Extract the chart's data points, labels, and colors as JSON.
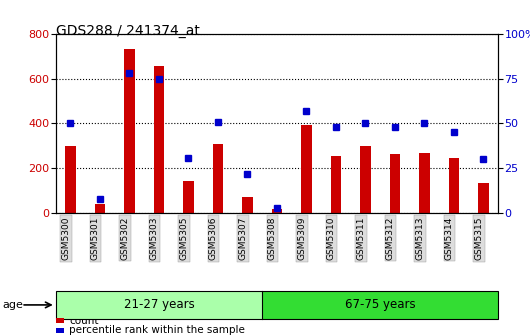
{
  "title": "GDS288 / 241374_at",
  "samples": [
    "GSM5300",
    "GSM5301",
    "GSM5302",
    "GSM5303",
    "GSM5305",
    "GSM5306",
    "GSM5307",
    "GSM5308",
    "GSM5309",
    "GSM5310",
    "GSM5311",
    "GSM5312",
    "GSM5313",
    "GSM5314",
    "GSM5315"
  ],
  "counts": [
    300,
    40,
    730,
    655,
    145,
    310,
    75,
    20,
    395,
    255,
    300,
    265,
    270,
    245,
    135
  ],
  "percentiles": [
    50,
    8,
    78,
    75,
    31,
    51,
    22,
    3,
    57,
    48,
    50,
    48,
    50,
    45,
    30
  ],
  "group1_label": "21-27 years",
  "group2_label": "67-75 years",
  "group1_count": 7,
  "group2_count": 8,
  "group1_color": "#aaffaa",
  "group2_color": "#33dd33",
  "bar_color": "#CC0000",
  "dot_color": "#0000CC",
  "ylim_left": [
    0,
    800
  ],
  "ylim_right": [
    0,
    100
  ],
  "yticks_left": [
    0,
    200,
    400,
    600,
    800
  ],
  "yticks_right": [
    0,
    25,
    50,
    75,
    100
  ],
  "legend_count_label": "count",
  "legend_pct_label": "percentile rank within the sample",
  "age_label": "age",
  "bg_color": "#ffffff",
  "tick_label_color_left": "#CC0000",
  "tick_label_color_right": "#0000CC"
}
